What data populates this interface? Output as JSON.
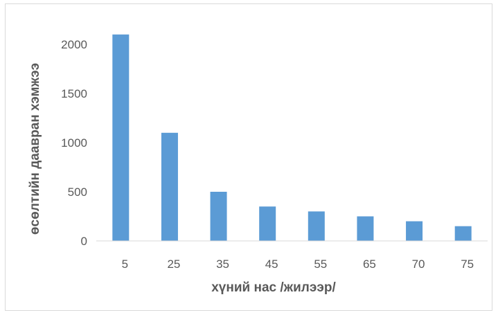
{
  "chart_data": {
    "type": "bar",
    "title": "",
    "xlabel": "хүний нас /жилээр/",
    "ylabel": "өсөлтийн даавран хэмжээ",
    "categories": [
      "5",
      "25",
      "35",
      "45",
      "55",
      "65",
      "70",
      "75"
    ],
    "values": [
      2100,
      1100,
      500,
      350,
      300,
      250,
      200,
      150
    ],
    "ylim": [
      0,
      2000
    ],
    "yticks": [
      "0",
      "500",
      "1000",
      "1500",
      "2000"
    ],
    "grid": false,
    "legend": "none",
    "colors": {
      "bar": "#5b9bd5",
      "axis": "#d9d9d9",
      "text": "#595959"
    }
  }
}
